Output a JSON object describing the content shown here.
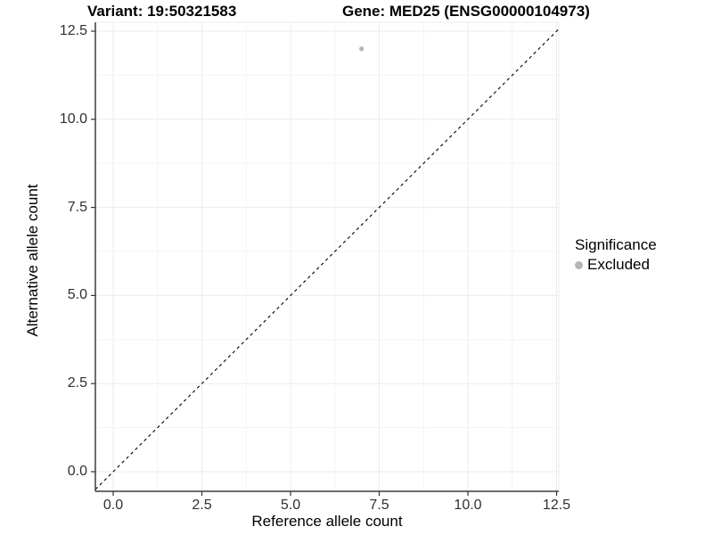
{
  "chart_data": {
    "type": "scatter",
    "title_left": "Variant: 19:50321583",
    "title_right": "Gene: MED25 (ENSG00000104973)",
    "xlabel": "Reference allele count",
    "ylabel": "Alternative allele count",
    "xlim": [
      -0.5,
      12.6
    ],
    "ylim": [
      -0.6,
      12.75
    ],
    "x_ticks": [
      0.0,
      2.5,
      5.0,
      7.5,
      10.0,
      12.5
    ],
    "x_tick_labels": [
      "0.0",
      "2.5",
      "5.0",
      "7.5",
      "10.0",
      "12.5"
    ],
    "y_ticks": [
      0.0,
      2.5,
      5.0,
      7.5,
      10.0,
      12.5
    ],
    "y_tick_labels": [
      "0.0",
      "2.5",
      "5.0",
      "7.5",
      "10.0",
      "12.5"
    ],
    "minor_ticks": {
      "x": [
        1.25,
        3.75,
        6.25,
        8.75,
        11.25
      ],
      "y": [
        1.25,
        3.75,
        6.25,
        8.75,
        11.25
      ]
    },
    "grid": true,
    "reference_line": {
      "type": "identity y=x",
      "style": "dashed",
      "color": "#000000"
    },
    "series": [
      {
        "name": "Excluded",
        "color": "#b5b5b5",
        "points": [
          {
            "x": 7,
            "y": 12
          }
        ]
      }
    ],
    "legend": {
      "title": "Significance",
      "position": "right",
      "items": [
        {
          "label": "Excluded",
          "color": "#b5b5b5"
        }
      ]
    }
  },
  "colors": {
    "background": "#ffffff",
    "grid_major": "#ebebeb",
    "grid_minor": "#f3f3f3",
    "panel_edge": "#ededed",
    "axis_line": "#3d3d3d",
    "tick_mark": "#333333",
    "tick_label": "#303030",
    "point": "#b5b5b5",
    "reference_line": "#000000"
  }
}
